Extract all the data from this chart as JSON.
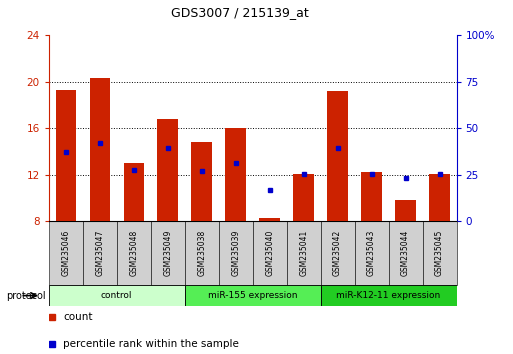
{
  "title": "GDS3007 / 215139_at",
  "samples": [
    "GSM235046",
    "GSM235047",
    "GSM235048",
    "GSM235049",
    "GSM235038",
    "GSM235039",
    "GSM235040",
    "GSM235041",
    "GSM235042",
    "GSM235043",
    "GSM235044",
    "GSM235045"
  ],
  "count_values": [
    19.3,
    20.3,
    13.0,
    16.8,
    14.8,
    16.0,
    8.3,
    12.1,
    19.2,
    12.2,
    9.8,
    12.1
  ],
  "percentile_values": [
    14.0,
    14.7,
    12.4,
    14.3,
    12.3,
    13.0,
    10.7,
    12.1,
    14.3,
    12.1,
    11.7,
    12.1
  ],
  "y_min": 8,
  "y_max": 24,
  "y_ticks_left": [
    8,
    12,
    16,
    20,
    24
  ],
  "y_ticks_right_vals": [
    0,
    25,
    50,
    75,
    100
  ],
  "y_ticks_right_labels": [
    "0",
    "25",
    "50",
    "75",
    "100%"
  ],
  "bar_color": "#cc2200",
  "dot_color": "#0000cc",
  "groups": [
    {
      "label": "control",
      "start": 0,
      "end": 4,
      "color": "#ccffcc"
    },
    {
      "label": "miR-155 expression",
      "start": 4,
      "end": 8,
      "color": "#55ee55"
    },
    {
      "label": "miR-K12-11 expression",
      "start": 8,
      "end": 12,
      "color": "#22cc22"
    }
  ],
  "legend_count_label": "count",
  "legend_percentile_label": "percentile rank within the sample",
  "protocol_label": "protocol",
  "left_axis_color": "#cc2200",
  "right_axis_color": "#0000cc",
  "grid_yticks": [
    12,
    16,
    20
  ]
}
